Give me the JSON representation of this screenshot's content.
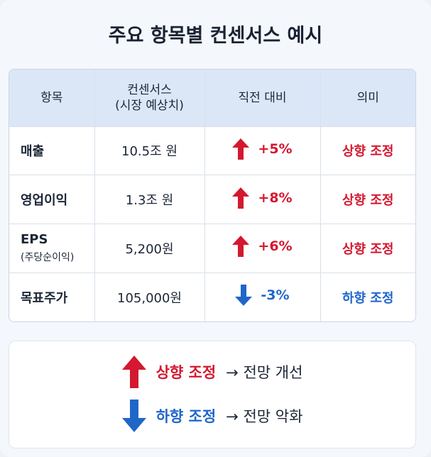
{
  "title": "주요 항목별 컨센서스 예시",
  "table": {
    "headers": {
      "item": "항목",
      "consensus_line1": "컨센서스",
      "consensus_line2": "(시장 예상치)",
      "change": "직전 대비",
      "meaning": "의미"
    },
    "rows": [
      {
        "item": "매출",
        "sub": "",
        "value": "10.5조 원",
        "change": "+5%",
        "direction": "up",
        "meaning": "상향 조정"
      },
      {
        "item": "영업이익",
        "sub": "",
        "value": "1.3조 원",
        "change": "+8%",
        "direction": "up",
        "meaning": "상향 조정"
      },
      {
        "item": "EPS",
        "sub": "(주당순이익)",
        "value": "5,200원",
        "change": "+6%",
        "direction": "up",
        "meaning": "상향 조정"
      },
      {
        "item": "목표주가",
        "sub": "",
        "value": "105,000원",
        "change": "-3%",
        "direction": "down",
        "meaning": "하향 조정"
      }
    ]
  },
  "legend": {
    "up_label": "상향 조정",
    "up_desc": "→ 전망 개선",
    "down_label": "하향 조정",
    "down_desc": "→ 전망 악화"
  },
  "colors": {
    "up": "#d4182f",
    "down": "#1f66c9",
    "header_bg": "#dbe7f7"
  }
}
